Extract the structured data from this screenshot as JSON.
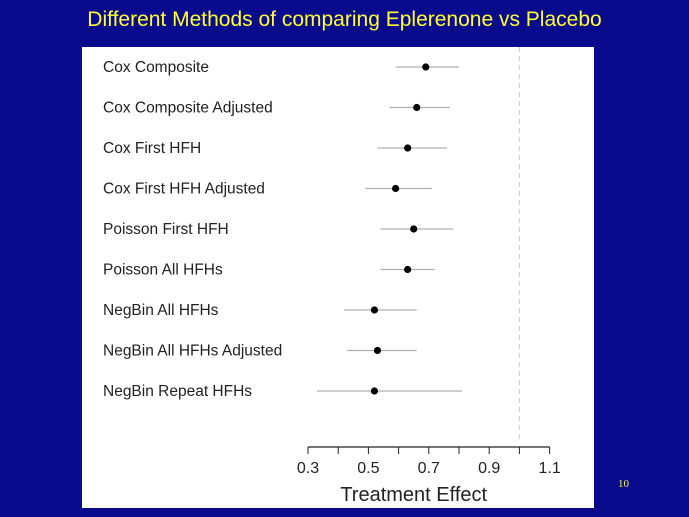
{
  "slide": {
    "title": "Different Methods of comparing Eplerenone vs Placebo",
    "page_number": "10"
  },
  "colors": {
    "background": "#0a0a8c",
    "title": "#ffff33",
    "panel": "#ffffff",
    "point": "#000000",
    "interval": "#b0b0b0",
    "reference_line": "#c8c8c8"
  },
  "chart_data": {
    "type": "forest",
    "xlabel": "Treatment Effect",
    "xlim": [
      0.3,
      1.2
    ],
    "xticks": [
      0.3,
      0.5,
      0.7,
      0.9,
      1.1
    ],
    "xtick_labels": [
      "0.3",
      "0.5",
      "0.7",
      "0.9",
      "1.1"
    ],
    "reference_line": 1.0,
    "grid": false,
    "categories": [
      "Cox Composite",
      "Cox Composite Adjusted",
      "Cox First HFH",
      "Cox First HFH Adjusted",
      "Poisson First HFH",
      "Poisson All HFHs",
      "NegBin All HFHs",
      "NegBin All HFHs Adjusted",
      "NegBin Repeat HFHs"
    ],
    "series": [
      {
        "estimate": [
          0.69,
          0.66,
          0.63,
          0.59,
          0.65,
          0.63,
          0.52,
          0.53,
          0.52
        ],
        "lower": [
          0.59,
          0.57,
          0.53,
          0.49,
          0.54,
          0.54,
          0.42,
          0.43,
          0.33
        ],
        "upper": [
          0.8,
          0.77,
          0.76,
          0.71,
          0.78,
          0.72,
          0.66,
          0.66,
          0.81
        ]
      }
    ]
  }
}
